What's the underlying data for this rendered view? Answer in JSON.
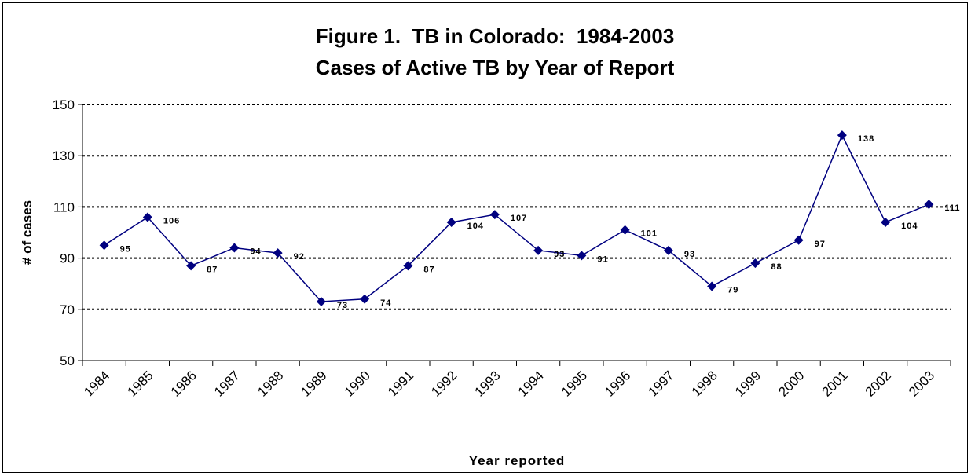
{
  "chart_data": {
    "type": "line",
    "title": "Figure 1.  TB in Colorado:  1984-2003",
    "subtitle": "Cases of Active TB by Year of Report",
    "x_label": "Year reported",
    "y_label": "# of cases",
    "categories": [
      "1984",
      "1985",
      "1986",
      "1987",
      "1988",
      "1989",
      "1990",
      "1991",
      "1992",
      "1993",
      "1994",
      "1995",
      "1996",
      "1997",
      "1998",
      "1999",
      "2000",
      "2001",
      "2002",
      "2003"
    ],
    "series": [
      {
        "name": "Cases",
        "color": "#000080",
        "values": [
          95,
          106,
          87,
          94,
          92,
          73,
          74,
          87,
          104,
          107,
          93,
          91,
          101,
          93,
          79,
          88,
          97,
          138,
          104,
          111
        ]
      }
    ],
    "ylim": [
      50,
      150
    ],
    "yticks": [
      50,
      70,
      90,
      110,
      130,
      150
    ],
    "grid": true
  }
}
